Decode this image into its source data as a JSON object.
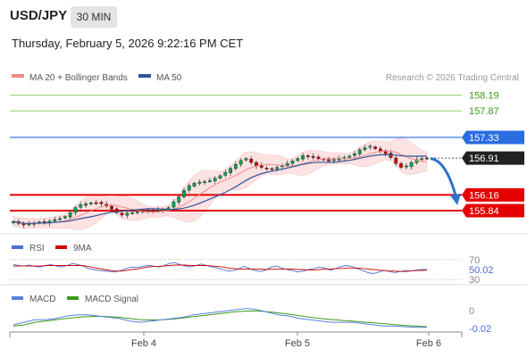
{
  "header": {
    "symbol": "USD/JPY",
    "timeframe": "30 MIN",
    "datetime": "Thursday, February 5, 2026 9:22:16 PM CET"
  },
  "colors": {
    "ma20": "#f08a8a",
    "bollinger_fill": "#fde2e2",
    "ma50": "#2f5597",
    "candle_up": "#00a651",
    "candle_down": "#d20000",
    "green_level": "#8fd16b",
    "blue_level": "#2a6de2",
    "red_level": "#e50000",
    "current_label": "#222222",
    "arrow": "#2b72c8",
    "rsi": "#4a6fd6",
    "rsi_ma": "#d00000",
    "macd": "#5b7fe0",
    "macd_signal": "#3d9a1a"
  },
  "chart_data": [
    {
      "type": "candlestick",
      "legend": [
        "MA 20 + Bollinger Bands",
        "MA 50"
      ],
      "credit": "Research © 2026 Trading Central",
      "ylim": [
        155.55,
        158.4
      ],
      "x_ticks": [
        "Feb 4",
        "Feb 5",
        "Feb 6"
      ],
      "levels": [
        {
          "value": 158.19,
          "label": "158.19",
          "kind": "resistance-minor"
        },
        {
          "value": 157.87,
          "label": "157.87",
          "kind": "resistance-minor"
        },
        {
          "value": 157.33,
          "label": "157.33",
          "kind": "resistance"
        },
        {
          "value": 156.16,
          "label": "156.16",
          "kind": "support"
        },
        {
          "value": 155.84,
          "label": "155.84",
          "kind": "support"
        }
      ],
      "current": {
        "value": 156.91,
        "label": "156.91"
      },
      "forecast_arrow": {
        "from": 156.9,
        "to": 155.97,
        "direction": "down"
      },
      "close_series": [
        155.62,
        155.58,
        155.55,
        155.57,
        155.59,
        155.61,
        155.6,
        155.63,
        155.66,
        155.68,
        155.72,
        155.8,
        155.9,
        155.96,
        155.98,
        156.0,
        156.0,
        155.98,
        155.93,
        155.87,
        155.8,
        155.75,
        155.79,
        155.8,
        155.82,
        155.83,
        155.84,
        155.84,
        155.85,
        155.86,
        155.9,
        156.02,
        156.12,
        156.25,
        156.35,
        156.4,
        156.42,
        156.43,
        156.45,
        156.5,
        156.55,
        156.62,
        156.7,
        156.78,
        156.86,
        156.9,
        156.82,
        156.75,
        156.72,
        156.7,
        156.68,
        156.72,
        156.76,
        156.8,
        156.85,
        156.9,
        156.96,
        156.94,
        156.92,
        156.9,
        156.88,
        156.85,
        156.88,
        156.9,
        156.92,
        156.95,
        157.0,
        157.08,
        157.12,
        157.15,
        157.1,
        157.05,
        157.0,
        156.92,
        156.8,
        156.72,
        156.75,
        156.82,
        156.88,
        156.9,
        156.91
      ]
    },
    {
      "type": "line",
      "legend": [
        "RSI",
        "9MA"
      ],
      "ylim": [
        25,
        75
      ],
      "ticks": [
        "70",
        "30"
      ],
      "current_label": "50.02",
      "rsi": [
        60,
        58,
        57,
        59,
        56,
        55,
        58,
        60,
        57,
        55,
        58,
        62,
        60,
        57,
        52,
        50,
        48,
        47,
        46,
        45,
        48,
        52,
        55,
        54,
        56,
        58,
        57,
        55,
        58,
        62,
        64,
        60,
        57,
        55,
        58,
        61,
        58,
        55,
        53,
        50,
        47,
        48,
        52,
        56,
        52,
        48,
        46,
        49,
        55,
        57,
        53,
        50,
        48,
        45,
        47,
        50,
        52,
        55,
        53,
        49,
        52,
        56,
        58,
        56,
        52,
        48,
        44,
        42,
        45,
        48,
        46,
        44,
        46,
        48,
        47,
        49,
        50,
        50.02
      ],
      "rsi_ma": [
        57,
        57,
        57,
        57,
        57,
        57,
        58,
        58,
        58,
        58,
        58,
        58,
        58,
        58,
        56,
        54,
        52,
        50,
        48,
        47,
        47,
        48,
        50,
        51,
        53,
        55,
        56,
        56,
        57,
        58,
        59,
        59,
        59,
        58,
        58,
        58,
        58,
        57,
        56,
        55,
        53,
        52,
        51,
        51,
        51,
        51,
        51,
        50,
        51,
        51,
        51,
        51,
        51,
        50,
        50,
        49,
        49,
        50,
        51,
        51,
        52,
        52,
        53,
        53,
        53,
        52,
        51,
        50,
        49,
        48,
        47,
        47,
        46,
        46,
        47,
        48,
        48,
        49
      ]
    },
    {
      "type": "line",
      "legend": [
        "MACD",
        "MACD Signal"
      ],
      "ylim": [
        -0.05,
        0.17
      ],
      "ticks": [
        "0"
      ],
      "current_label": "-0.02",
      "macd": [
        0.0,
        0.02,
        0.04,
        0.04,
        0.05,
        0.07,
        0.08,
        0.08,
        0.07,
        0.06,
        0.05,
        0.03,
        0.02,
        0.03,
        0.04,
        0.05,
        0.06,
        0.08,
        0.09,
        0.1,
        0.11,
        0.12,
        0.13,
        0.12,
        0.1,
        0.08,
        0.07,
        0.05,
        0.04,
        0.03,
        0.02,
        0.02,
        0.02,
        0.01,
        0.0,
        -0.01,
        -0.01,
        -0.015,
        -0.02,
        -0.02
      ],
      "macd_signal": [
        -0.01,
        0.0,
        0.02,
        0.03,
        0.04,
        0.05,
        0.06,
        0.065,
        0.068,
        0.065,
        0.06,
        0.05,
        0.04,
        0.038,
        0.04,
        0.045,
        0.055,
        0.065,
        0.075,
        0.085,
        0.095,
        0.105,
        0.11,
        0.11,
        0.105,
        0.095,
        0.085,
        0.072,
        0.06,
        0.05,
        0.042,
        0.035,
        0.03,
        0.022,
        0.015,
        0.008,
        0.002,
        -0.005,
        -0.01,
        -0.015
      ]
    }
  ]
}
